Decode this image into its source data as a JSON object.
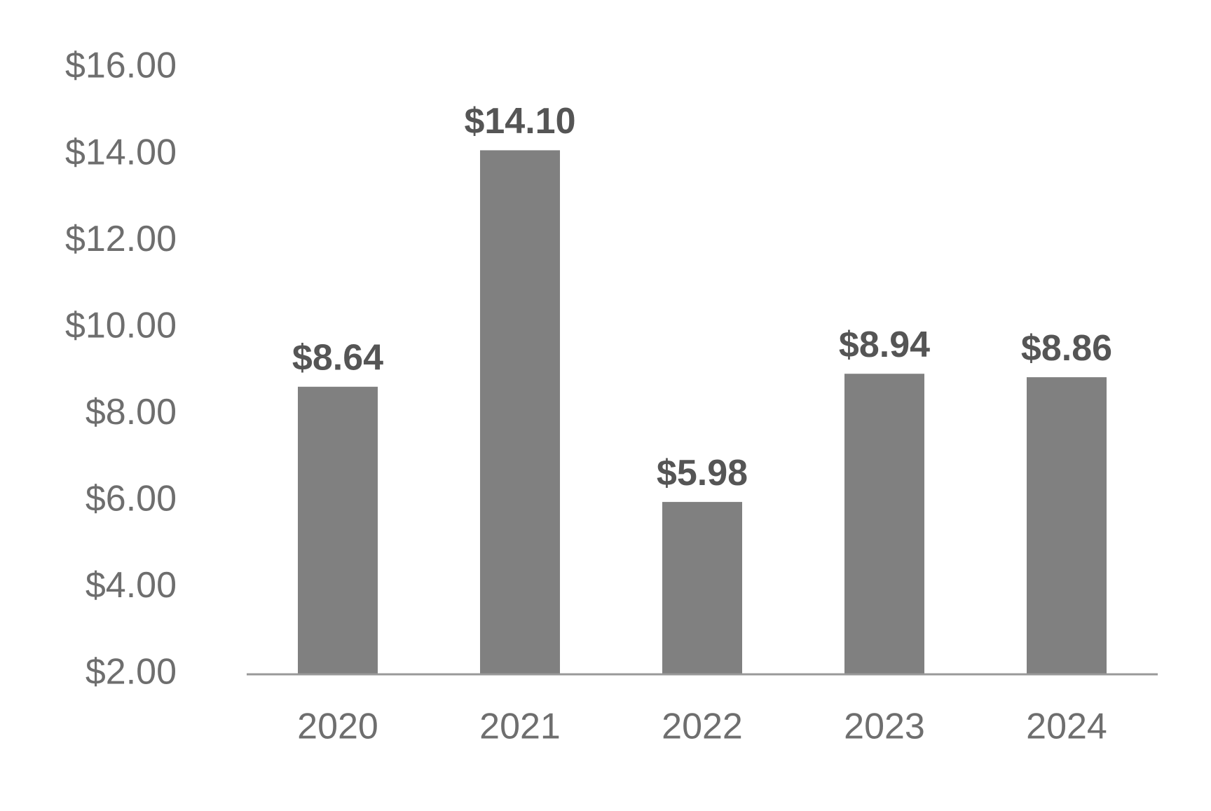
{
  "chart_data": {
    "type": "bar",
    "categories": [
      "2020",
      "2021",
      "2022",
      "2023",
      "2024"
    ],
    "values": [
      8.64,
      14.1,
      5.98,
      8.94,
      8.86
    ],
    "data_labels": [
      "$8.64",
      "$14.10",
      "$5.98",
      "$8.94",
      "$8.86"
    ],
    "y_ticks": [
      2,
      4,
      6,
      8,
      10,
      12,
      14,
      16
    ],
    "y_tick_labels": [
      "$2.00",
      "$4.00",
      "$6.00",
      "$8.00",
      "$10.00",
      "$12.00",
      "$14.00",
      "$16.00"
    ],
    "ylim": [
      2,
      16
    ],
    "grid": false,
    "legend": "none",
    "colors": {
      "bar": "#808080",
      "axis": "#999999",
      "tick_text": "#6e6e6e",
      "label_text": "#555555"
    }
  }
}
